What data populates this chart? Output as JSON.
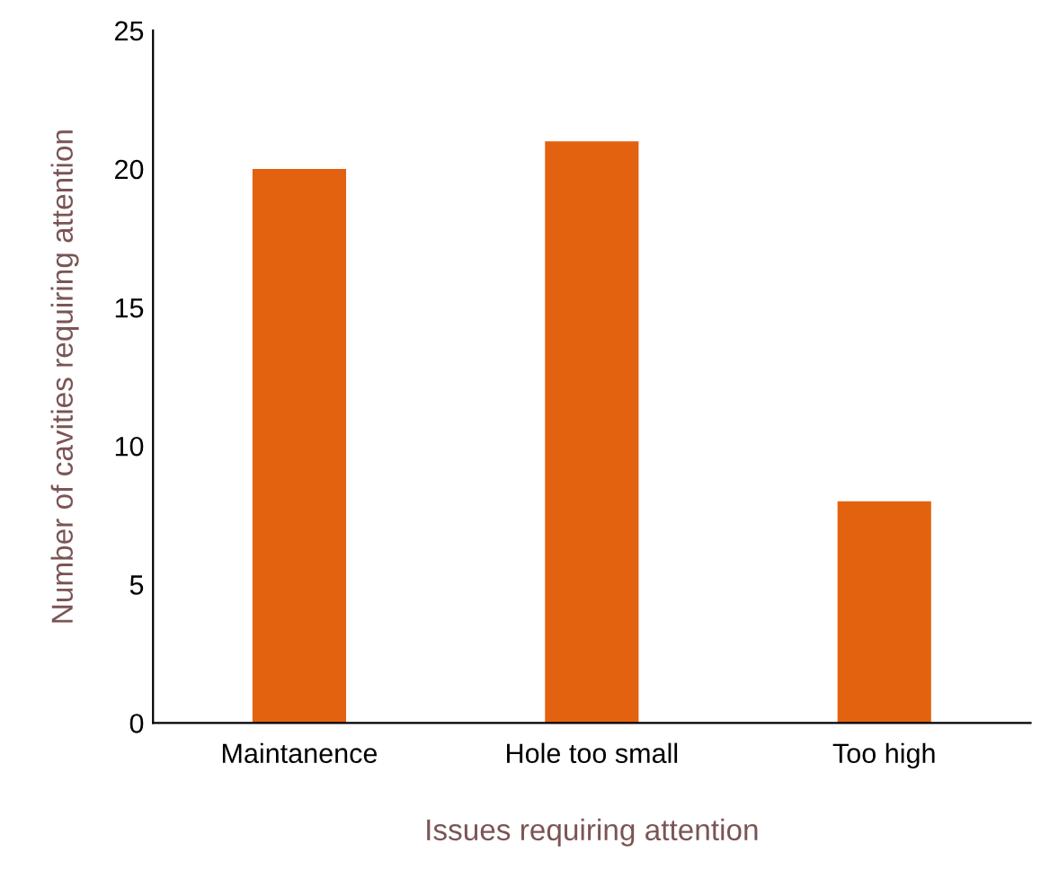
{
  "chart_data": {
    "type": "bar",
    "xlabel": "Issues requiring attention",
    "ylabel": "Number of cavities requiring attention",
    "categories": [
      "Maintanence",
      "Hole too small",
      "Too high"
    ],
    "values": [
      20,
      21,
      8
    ],
    "color": "#e36210",
    "ylim": [
      0,
      25
    ],
    "yticks": [
      0,
      5,
      10,
      15,
      20,
      25
    ],
    "grid": false,
    "legend": false
  }
}
